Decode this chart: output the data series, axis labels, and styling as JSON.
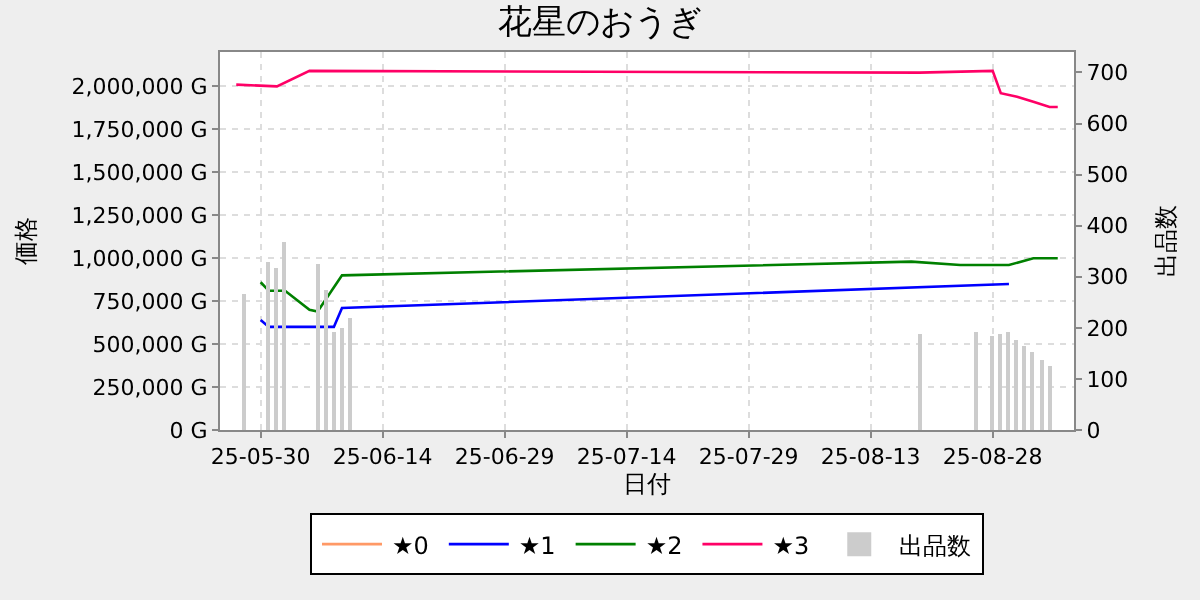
{
  "chart_data": {
    "type": "line",
    "title": "花星のおうぎ",
    "xlabel": "日付",
    "ylabel": "価格",
    "y2label": "出品数",
    "xlim": [
      "--05-25",
      "--09-07"
    ],
    "xticks": [
      {
        "value": "--05-30",
        "label": "25-05-30"
      },
      {
        "value": "--06-14",
        "label": "25-06-14"
      },
      {
        "value": "--06-29",
        "label": "25-06-29"
      },
      {
        "value": "--07-14",
        "label": "25-07-14"
      },
      {
        "value": "--07-29",
        "label": "25-07-29"
      },
      {
        "value": "--08-13",
        "label": "25-08-13"
      },
      {
        "value": "--08-28",
        "label": "25-08-28"
      }
    ],
    "ylim": [
      0,
      2200000
    ],
    "yticks": [
      {
        "value": 0,
        "label": "0 G"
      },
      {
        "value": 250000,
        "label": "250,000 G"
      },
      {
        "value": 500000,
        "label": "500,000 G"
      },
      {
        "value": 750000,
        "label": "750,000 G"
      },
      {
        "value": 1000000,
        "label": "1,000,000 G"
      },
      {
        "value": 1250000,
        "label": "1,250,000 G"
      },
      {
        "value": 1500000,
        "label": "1,500,000 G"
      },
      {
        "value": 1750000,
        "label": "1,750,000 G"
      },
      {
        "value": 2000000,
        "label": "2,000,000 G"
      }
    ],
    "y2lim": [
      0,
      740
    ],
    "y2ticks": [
      0,
      100,
      200,
      300,
      400,
      500,
      600,
      700
    ],
    "grid": true,
    "legend": "bottom",
    "marker": "none",
    "line_style": "solid",
    "series": [
      {
        "name": "★0",
        "color": "#ff9966",
        "values": [
          null
        ]
      },
      {
        "name": "★1",
        "color": "#0000ff",
        "x": [
          "--05-30",
          "--05-31",
          "--06-08",
          "--06-09",
          "--08-30"
        ],
        "values": [
          640000,
          600000,
          600000,
          710000,
          850000
        ]
      },
      {
        "name": "★2",
        "color": "#008000",
        "x": [
          "--05-30",
          "--05-31",
          "--06-02",
          "--06-05",
          "--06-06",
          "--06-09",
          "--08-18",
          "--08-24",
          "--08-30",
          "--09-02",
          "--09-05"
        ],
        "values": [
          860000,
          810000,
          810000,
          700000,
          690000,
          900000,
          980000,
          960000,
          960000,
          1000000,
          1000000
        ]
      },
      {
        "name": "★3",
        "color": "#ff0066",
        "x": [
          "--05-27",
          "--06-01",
          "--06-05",
          "--08-19",
          "--08-28",
          "--08-29",
          "--08-31",
          "--09-02",
          "--09-04",
          "--09-05"
        ],
        "values": [
          2010000,
          2000000,
          2090000,
          2080000,
          2090000,
          1960000,
          1940000,
          1910000,
          1880000,
          1880000
        ]
      },
      {
        "name": "出品数",
        "type": "bar",
        "axis": "y2",
        "color": "#cccccc",
        "x": [
          "--05-28",
          "--05-31",
          "--06-01",
          "--06-02",
          "--06-06",
          "--06-07",
          "--06-08",
          "--06-09",
          "--06-10",
          "--08-19",
          "--08-26",
          "--08-28",
          "--08-29",
          "--08-30",
          "--08-31",
          "--09-01",
          "--09-02",
          "--09-03",
          "--09-04"
        ],
        "values": [
          268,
          329,
          317,
          369,
          324,
          276,
          191,
          200,
          221,
          188,
          191,
          185,
          188,
          191,
          177,
          165,
          152,
          138,
          127
        ]
      }
    ]
  }
}
